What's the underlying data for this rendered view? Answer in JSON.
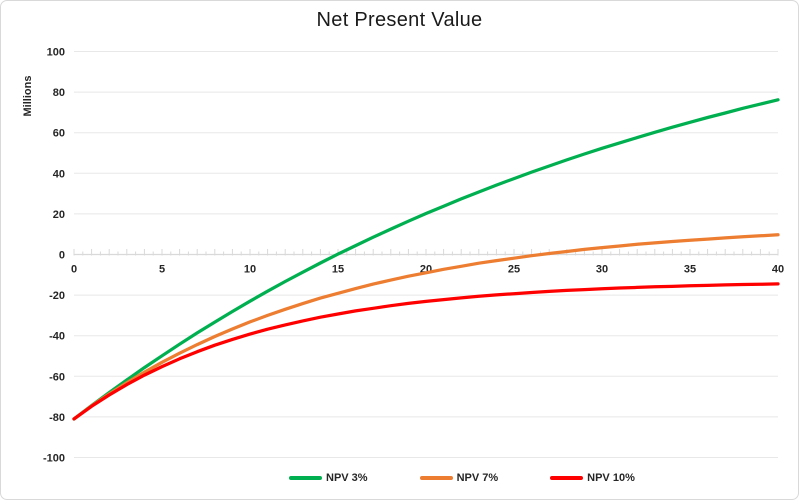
{
  "chart_data": {
    "type": "line",
    "title": "Net Present Value",
    "ylabel_units": "Millions",
    "xlim": [
      0,
      40
    ],
    "ylim": [
      -100,
      100
    ],
    "grid": true,
    "legend_position": "bottom",
    "x_ticks": [
      0,
      5,
      10,
      15,
      20,
      25,
      30,
      35,
      40
    ],
    "y_ticks": [
      100,
      80,
      60,
      40,
      20,
      0,
      -20,
      -40,
      -60,
      -80,
      -100
    ],
    "x": [
      0,
      1,
      2,
      3,
      4,
      5,
      6,
      7,
      8,
      9,
      10,
      11,
      12,
      13,
      14,
      15,
      16,
      17,
      18,
      19,
      20,
      21,
      22,
      23,
      24,
      25,
      26,
      27,
      28,
      29,
      30,
      31,
      32,
      33,
      34,
      35,
      36,
      37,
      38,
      39,
      40
    ],
    "series": [
      {
        "name": "NPV 3%",
        "color": "#00B050",
        "values": [
          -81,
          -74.4,
          -68,
          -61.8,
          -55.7,
          -49.9,
          -44.2,
          -38.6,
          -33.3,
          -28.1,
          -23,
          -18.1,
          -13.3,
          -8.7,
          -4.2,
          0.2,
          4.4,
          8.5,
          12.5,
          16.4,
          20.2,
          23.8,
          27.4,
          30.8,
          34.2,
          37.4,
          40.6,
          43.6,
          46.6,
          49.5,
          52.3,
          55,
          57.6,
          60.2,
          62.7,
          65.1,
          67.5,
          69.7,
          72,
          74.1,
          76.2
        ]
      },
      {
        "name": "NPV 7%",
        "color": "#ED7D31",
        "values": [
          -81,
          -74.6,
          -68.7,
          -63.2,
          -58,
          -53.1,
          -48.6,
          -44.4,
          -40.4,
          -36.7,
          -33.2,
          -30,
          -27,
          -24.2,
          -21.5,
          -19.1,
          -16.8,
          -14.6,
          -12.6,
          -10.7,
          -9,
          -7.3,
          -5.8,
          -4.3,
          -3,
          -1.8,
          -0.6,
          0.5,
          1.5,
          2.5,
          3.4,
          4.2,
          5,
          5.7,
          6.4,
          7,
          7.6,
          8.2,
          8.7,
          9.2,
          9.7
        ]
      },
      {
        "name": "NPV 10%",
        "color": "#FF0000",
        "values": [
          -81,
          -74.8,
          -69.2,
          -64.1,
          -59.4,
          -55.2,
          -51.4,
          -47.9,
          -44.7,
          -41.8,
          -39.2,
          -36.8,
          -34.7,
          -32.7,
          -30.9,
          -29.3,
          -27.8,
          -26.5,
          -25.2,
          -24.1,
          -23.1,
          -22.2,
          -21.4,
          -20.6,
          -19.9,
          -19.3,
          -18.7,
          -18.2,
          -17.7,
          -17.3,
          -16.9,
          -16.5,
          -16.2,
          -15.9,
          -15.7,
          -15.4,
          -15.2,
          -15,
          -14.8,
          -14.7,
          -14.5
        ]
      }
    ],
    "style": {
      "grid_color": "#E8E8E8",
      "axis_color": "#D9D9D9",
      "tick_color": "#D9D9D9",
      "label_color": "#262626",
      "background": "#FFFFFF",
      "border_color": "#D9D9D9"
    }
  }
}
